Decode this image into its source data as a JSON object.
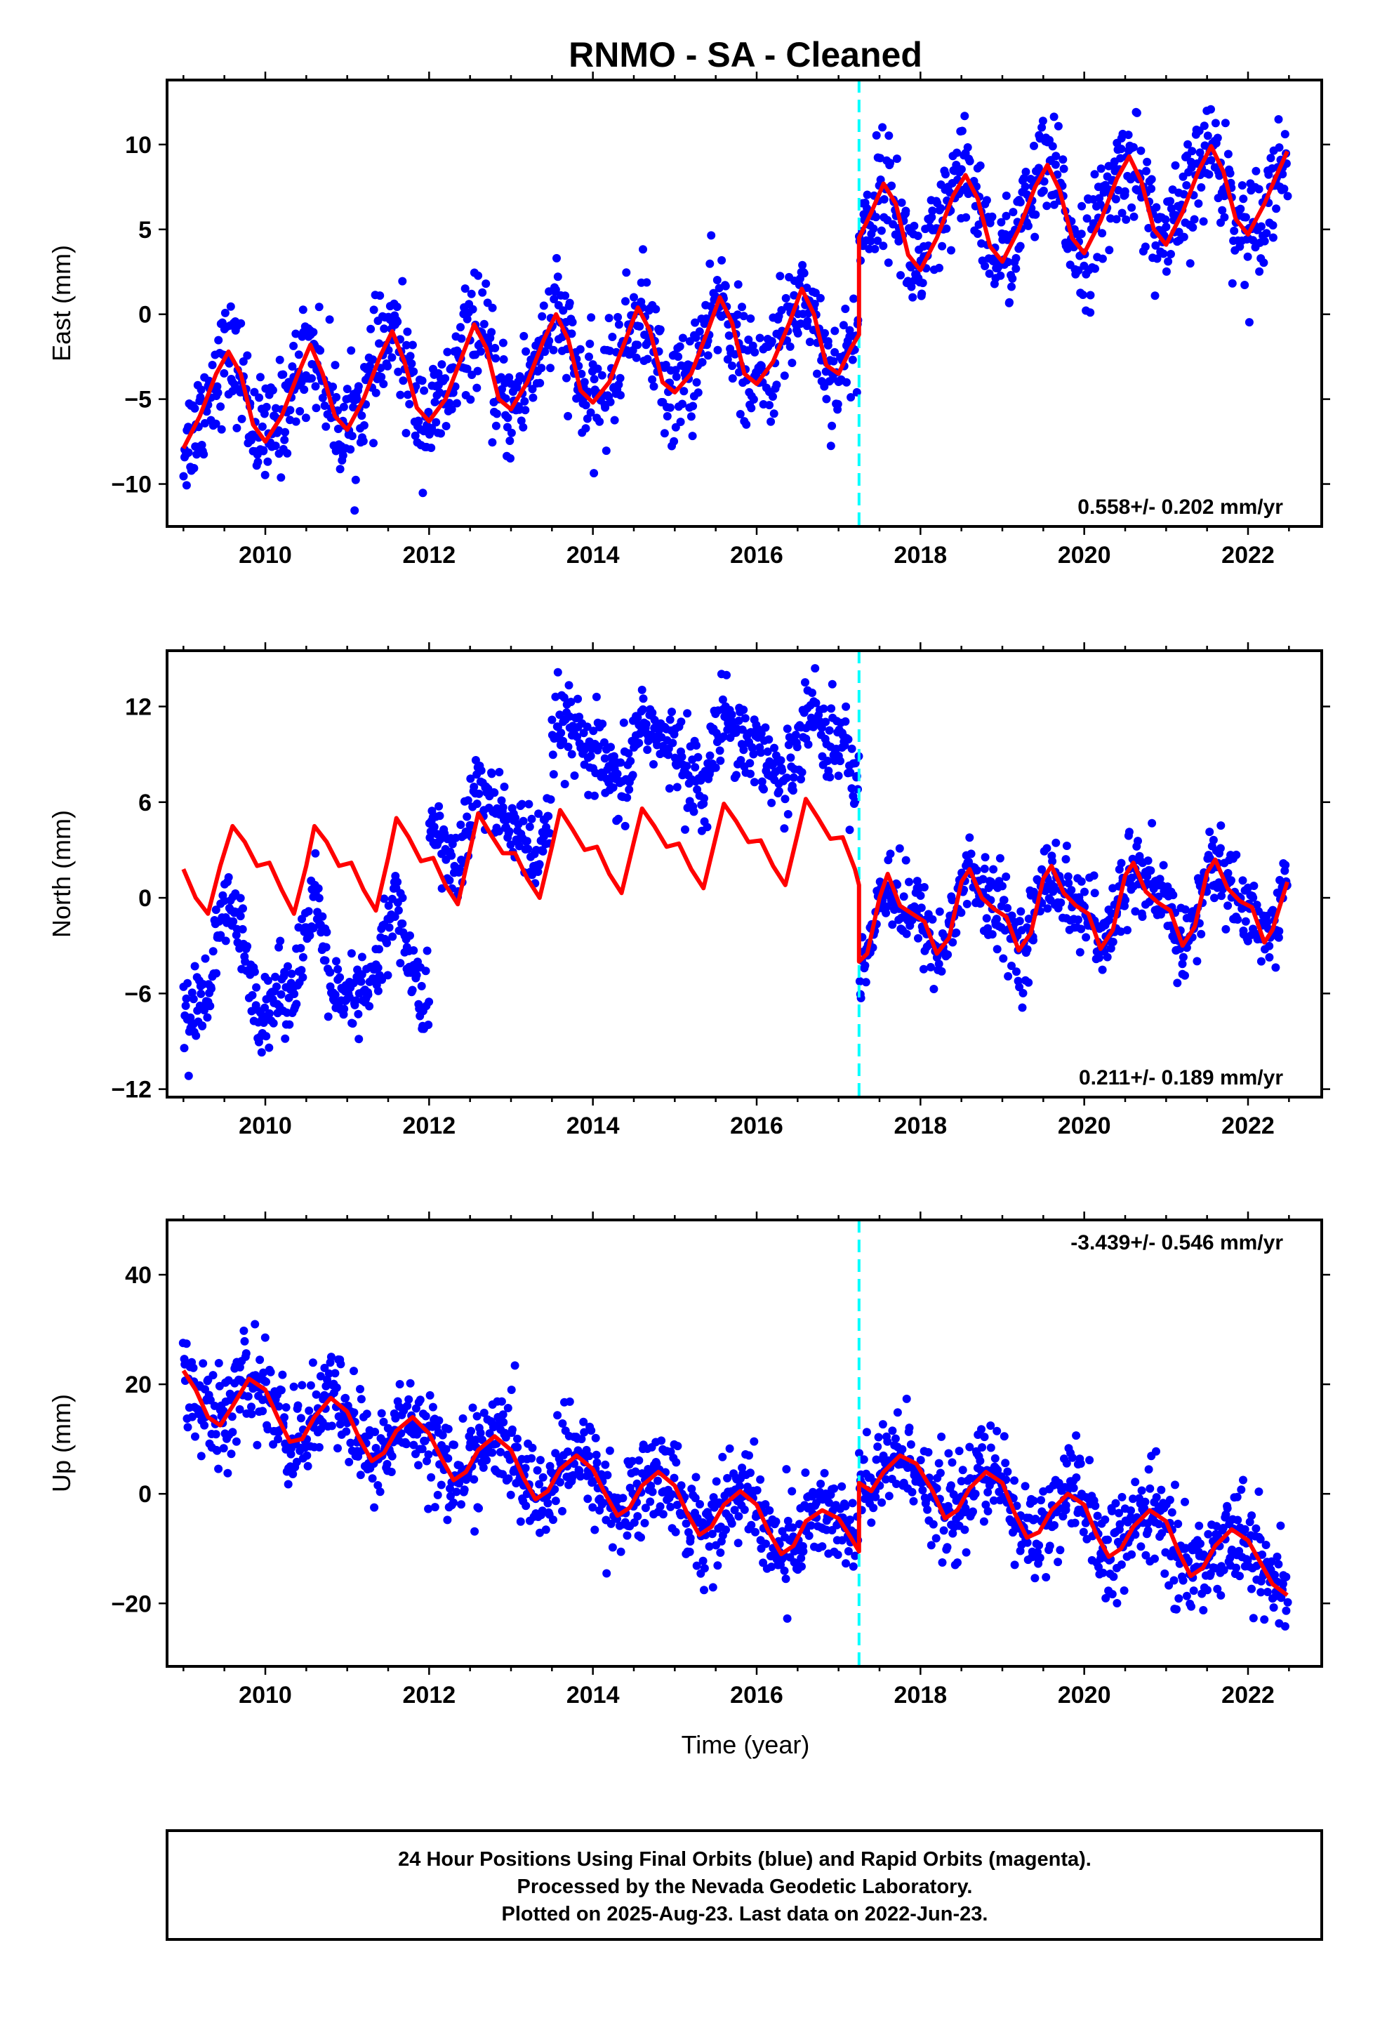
{
  "figure": {
    "title": "RNMO  - SA - Cleaned",
    "xlabel": "Time (year)",
    "footer": [
      "24 Hour Positions Using Final Orbits (blue) and Rapid Orbits (magenta).",
      "Processed by the Nevada Geodetic Laboratory.",
      "Plotted on 2025-Aug-23. Last data on 2022-Jun-23."
    ],
    "colors": {
      "points": "#0000ff",
      "model": "#ff0000",
      "event_line": "#00ffff",
      "frame": "#000000"
    }
  },
  "chart_data": [
    {
      "type": "scatter",
      "ylabel": "East (mm)",
      "rate_label": "0.558+/- 0.202 mm/yr",
      "xlim": [
        2008.8,
        2022.9
      ],
      "ylim": [
        -12.5,
        13.8
      ],
      "xticks": [
        2010,
        2012,
        2014,
        2016,
        2018,
        2020,
        2022
      ],
      "yticks": [
        -10,
        -5,
        0,
        5,
        10
      ],
      "ytick_labels": [
        "−10",
        "−5",
        "0",
        "5",
        "10"
      ],
      "event_year": 2017.25,
      "model": [
        [
          2009.0,
          -7.9
        ],
        [
          2009.2,
          -6.0
        ],
        [
          2009.4,
          -3.5
        ],
        [
          2009.55,
          -2.2
        ],
        [
          2009.7,
          -3.5
        ],
        [
          2009.85,
          -6.5
        ],
        [
          2010.0,
          -7.5
        ],
        [
          2010.2,
          -6.0
        ],
        [
          2010.4,
          -3.5
        ],
        [
          2010.55,
          -1.8
        ],
        [
          2010.7,
          -3.5
        ],
        [
          2010.85,
          -6.0
        ],
        [
          2011.0,
          -6.8
        ],
        [
          2011.2,
          -5.0
        ],
        [
          2011.4,
          -2.5
        ],
        [
          2011.55,
          -1.0
        ],
        [
          2011.7,
          -2.8
        ],
        [
          2011.85,
          -5.5
        ],
        [
          2012.0,
          -6.3
        ],
        [
          2012.2,
          -5.0
        ],
        [
          2012.4,
          -2.5
        ],
        [
          2012.55,
          -0.6
        ],
        [
          2012.7,
          -2.0
        ],
        [
          2012.85,
          -5.0
        ],
        [
          2013.0,
          -5.6
        ],
        [
          2013.2,
          -4.0
        ],
        [
          2013.4,
          -1.5
        ],
        [
          2013.55,
          0.0
        ],
        [
          2013.7,
          -1.5
        ],
        [
          2013.85,
          -4.5
        ],
        [
          2014.0,
          -5.2
        ],
        [
          2014.2,
          -4.0
        ],
        [
          2014.4,
          -1.5
        ],
        [
          2014.55,
          0.4
        ],
        [
          2014.7,
          -1.0
        ],
        [
          2014.85,
          -4.0
        ],
        [
          2015.0,
          -4.6
        ],
        [
          2015.2,
          -3.5
        ],
        [
          2015.4,
          -1.0
        ],
        [
          2015.55,
          1.0
        ],
        [
          2015.7,
          -0.5
        ],
        [
          2015.85,
          -3.5
        ],
        [
          2016.0,
          -4.1
        ],
        [
          2016.2,
          -2.8
        ],
        [
          2016.4,
          -0.5
        ],
        [
          2016.55,
          1.5
        ],
        [
          2016.7,
          0.0
        ],
        [
          2016.85,
          -3.0
        ],
        [
          2017.0,
          -3.5
        ],
        [
          2017.15,
          -2.0
        ],
        [
          2017.25,
          -1.2
        ],
        [
          2017.25,
          4.5
        ],
        [
          2017.4,
          6.0
        ],
        [
          2017.55,
          7.7
        ],
        [
          2017.7,
          6.5
        ],
        [
          2017.85,
          3.5
        ],
        [
          2018.0,
          2.6
        ],
        [
          2018.2,
          4.5
        ],
        [
          2018.4,
          7.0
        ],
        [
          2018.55,
          8.2
        ],
        [
          2018.7,
          6.8
        ],
        [
          2018.85,
          4.0
        ],
        [
          2019.0,
          3.1
        ],
        [
          2019.2,
          5.0
        ],
        [
          2019.4,
          7.5
        ],
        [
          2019.55,
          8.8
        ],
        [
          2019.7,
          7.3
        ],
        [
          2019.85,
          4.5
        ],
        [
          2020.0,
          3.6
        ],
        [
          2020.2,
          5.5
        ],
        [
          2020.4,
          8.0
        ],
        [
          2020.55,
          9.3
        ],
        [
          2020.7,
          7.8
        ],
        [
          2020.85,
          5.0
        ],
        [
          2021.0,
          4.1
        ],
        [
          2021.2,
          6.0
        ],
        [
          2021.4,
          8.5
        ],
        [
          2021.55,
          9.9
        ],
        [
          2021.7,
          8.4
        ],
        [
          2021.85,
          5.6
        ],
        [
          2022.0,
          4.7
        ],
        [
          2022.2,
          6.5
        ],
        [
          2022.35,
          8.2
        ],
        [
          2022.48,
          9.6
        ]
      ]
    },
    {
      "type": "scatter",
      "ylabel": "North (mm)",
      "rate_label": "0.211+/- 0.189 mm/yr",
      "xlim": [
        2008.8,
        2022.9
      ],
      "ylim": [
        -12.5,
        15.5
      ],
      "xticks": [
        2010,
        2012,
        2014,
        2016,
        2018,
        2020,
        2022
      ],
      "yticks": [
        -12,
        -6,
        0,
        6,
        12
      ],
      "ytick_labels": [
        "−12",
        "−6",
        "0",
        "6",
        "12"
      ],
      "event_year": 2017.25,
      "model": [
        [
          2009.0,
          1.8
        ],
        [
          2009.15,
          0.0
        ],
        [
          2009.3,
          -1.0
        ],
        [
          2009.45,
          2.0
        ],
        [
          2009.6,
          4.5
        ],
        [
          2009.75,
          3.5
        ],
        [
          2009.9,
          2.0
        ],
        [
          2010.05,
          2.2
        ],
        [
          2010.2,
          0.5
        ],
        [
          2010.35,
          -1.0
        ],
        [
          2010.5,
          2.0
        ],
        [
          2010.6,
          4.5
        ],
        [
          2010.75,
          3.5
        ],
        [
          2010.9,
          2.0
        ],
        [
          2011.05,
          2.2
        ],
        [
          2011.2,
          0.5
        ],
        [
          2011.35,
          -0.8
        ],
        [
          2011.5,
          2.5
        ],
        [
          2011.6,
          5.0
        ],
        [
          2011.75,
          3.8
        ],
        [
          2011.9,
          2.3
        ],
        [
          2012.05,
          2.5
        ],
        [
          2012.2,
          0.8
        ],
        [
          2012.35,
          -0.4
        ],
        [
          2012.5,
          3.0
        ],
        [
          2012.6,
          5.3
        ],
        [
          2012.75,
          4.0
        ],
        [
          2012.9,
          2.8
        ],
        [
          2013.05,
          2.8
        ],
        [
          2013.2,
          1.2
        ],
        [
          2013.35,
          0.0
        ],
        [
          2013.5,
          3.2
        ],
        [
          2013.6,
          5.5
        ],
        [
          2013.75,
          4.3
        ],
        [
          2013.9,
          3.0
        ],
        [
          2014.05,
          3.2
        ],
        [
          2014.2,
          1.5
        ],
        [
          2014.35,
          0.3
        ],
        [
          2014.5,
          3.5
        ],
        [
          2014.6,
          5.6
        ],
        [
          2014.75,
          4.5
        ],
        [
          2014.9,
          3.2
        ],
        [
          2015.05,
          3.4
        ],
        [
          2015.2,
          1.8
        ],
        [
          2015.35,
          0.6
        ],
        [
          2015.5,
          3.8
        ],
        [
          2015.6,
          5.9
        ],
        [
          2015.75,
          4.8
        ],
        [
          2015.9,
          3.5
        ],
        [
          2016.05,
          3.6
        ],
        [
          2016.2,
          2.0
        ],
        [
          2016.35,
          0.8
        ],
        [
          2016.5,
          4.0
        ],
        [
          2016.6,
          6.2
        ],
        [
          2016.75,
          5.0
        ],
        [
          2016.9,
          3.7
        ],
        [
          2017.05,
          3.8
        ],
        [
          2017.2,
          1.8
        ],
        [
          2017.25,
          0.8
        ],
        [
          2017.25,
          -4.0
        ],
        [
          2017.35,
          -3.5
        ],
        [
          2017.5,
          0.0
        ],
        [
          2017.6,
          1.5
        ],
        [
          2017.75,
          -0.5
        ],
        [
          2017.9,
          -1.0
        ],
        [
          2018.05,
          -1.5
        ],
        [
          2018.2,
          -3.5
        ],
        [
          2018.35,
          -2.5
        ],
        [
          2018.5,
          1.0
        ],
        [
          2018.6,
          1.8
        ],
        [
          2018.75,
          0.0
        ],
        [
          2018.9,
          -0.7
        ],
        [
          2019.05,
          -1.2
        ],
        [
          2019.2,
          -3.3
        ],
        [
          2019.35,
          -2.2
        ],
        [
          2019.5,
          1.2
        ],
        [
          2019.6,
          2.0
        ],
        [
          2019.75,
          0.3
        ],
        [
          2019.9,
          -0.5
        ],
        [
          2020.05,
          -1.0
        ],
        [
          2020.2,
          -3.2
        ],
        [
          2020.35,
          -2.0
        ],
        [
          2020.5,
          1.4
        ],
        [
          2020.6,
          2.2
        ],
        [
          2020.75,
          0.4
        ],
        [
          2020.9,
          -0.3
        ],
        [
          2021.05,
          -0.8
        ],
        [
          2021.2,
          -3.0
        ],
        [
          2021.35,
          -1.8
        ],
        [
          2021.5,
          1.6
        ],
        [
          2021.6,
          2.4
        ],
        [
          2021.75,
          0.6
        ],
        [
          2021.9,
          -0.2
        ],
        [
          2022.05,
          -0.6
        ],
        [
          2022.2,
          -2.8
        ],
        [
          2022.3,
          -2.0
        ],
        [
          2022.48,
          1.0
        ]
      ]
    },
    {
      "type": "scatter",
      "ylabel": "Up (mm)",
      "rate_label": "-3.439+/- 0.546 mm/yr",
      "xlim": [
        2008.8,
        2022.9
      ],
      "ylim": [
        -31.5,
        50.0
      ],
      "xticks": [
        2010,
        2012,
        2014,
        2016,
        2018,
        2020,
        2022
      ],
      "yticks": [
        -20,
        0,
        20,
        40
      ],
      "ytick_labels": [
        "−20",
        "0",
        "20",
        "40"
      ],
      "event_year": 2017.25,
      "model": [
        [
          2009.0,
          22.5
        ],
        [
          2009.15,
          19.0
        ],
        [
          2009.3,
          14.0
        ],
        [
          2009.45,
          12.5
        ],
        [
          2009.6,
          16.0
        ],
        [
          2009.8,
          21.0
        ],
        [
          2010.0,
          19.0
        ],
        [
          2010.15,
          14.0
        ],
        [
          2010.3,
          9.5
        ],
        [
          2010.45,
          10.0
        ],
        [
          2010.6,
          14.0
        ],
        [
          2010.8,
          17.5
        ],
        [
          2011.0,
          15.0
        ],
        [
          2011.15,
          10.0
        ],
        [
          2011.3,
          6.0
        ],
        [
          2011.45,
          7.5
        ],
        [
          2011.6,
          11.5
        ],
        [
          2011.8,
          14.0
        ],
        [
          2012.0,
          11.0
        ],
        [
          2012.15,
          6.5
        ],
        [
          2012.3,
          2.5
        ],
        [
          2012.45,
          4.0
        ],
        [
          2012.6,
          8.0
        ],
        [
          2012.8,
          10.5
        ],
        [
          2013.0,
          8.0
        ],
        [
          2013.15,
          3.0
        ],
        [
          2013.3,
          -1.0
        ],
        [
          2013.45,
          0.5
        ],
        [
          2013.6,
          4.5
        ],
        [
          2013.8,
          7.0
        ],
        [
          2014.0,
          4.5
        ],
        [
          2014.15,
          0.0
        ],
        [
          2014.3,
          -4.0
        ],
        [
          2014.45,
          -2.5
        ],
        [
          2014.6,
          1.5
        ],
        [
          2014.8,
          4.0
        ],
        [
          2015.0,
          1.5
        ],
        [
          2015.15,
          -3.5
        ],
        [
          2015.3,
          -7.5
        ],
        [
          2015.45,
          -6.0
        ],
        [
          2015.6,
          -2.0
        ],
        [
          2015.8,
          0.5
        ],
        [
          2016.0,
          -2.0
        ],
        [
          2016.15,
          -7.0
        ],
        [
          2016.3,
          -11.0
        ],
        [
          2016.45,
          -9.5
        ],
        [
          2016.6,
          -5.0
        ],
        [
          2016.8,
          -3.0
        ],
        [
          2017.0,
          -4.5
        ],
        [
          2017.15,
          -8.0
        ],
        [
          2017.25,
          -10.5
        ],
        [
          2017.25,
          2.0
        ],
        [
          2017.4,
          0.5
        ],
        [
          2017.55,
          4.0
        ],
        [
          2017.75,
          7.0
        ],
        [
          2017.95,
          5.5
        ],
        [
          2018.15,
          0.5
        ],
        [
          2018.3,
          -4.5
        ],
        [
          2018.45,
          -3.0
        ],
        [
          2018.6,
          1.0
        ],
        [
          2018.8,
          4.0
        ],
        [
          2019.0,
          2.0
        ],
        [
          2019.15,
          -3.5
        ],
        [
          2019.3,
          -8.0
        ],
        [
          2019.45,
          -7.0
        ],
        [
          2019.6,
          -3.0
        ],
        [
          2019.8,
          0.0
        ],
        [
          2020.0,
          -2.0
        ],
        [
          2020.15,
          -7.5
        ],
        [
          2020.3,
          -11.5
        ],
        [
          2020.45,
          -10.0
        ],
        [
          2020.6,
          -6.0
        ],
        [
          2020.8,
          -3.0
        ],
        [
          2021.0,
          -5.0
        ],
        [
          2021.15,
          -10.5
        ],
        [
          2021.3,
          -15.0
        ],
        [
          2021.45,
          -13.5
        ],
        [
          2021.6,
          -9.5
        ],
        [
          2021.8,
          -6.5
        ],
        [
          2022.0,
          -8.5
        ],
        [
          2022.15,
          -12.5
        ],
        [
          2022.3,
          -16.5
        ],
        [
          2022.48,
          -18.5
        ]
      ]
    }
  ]
}
